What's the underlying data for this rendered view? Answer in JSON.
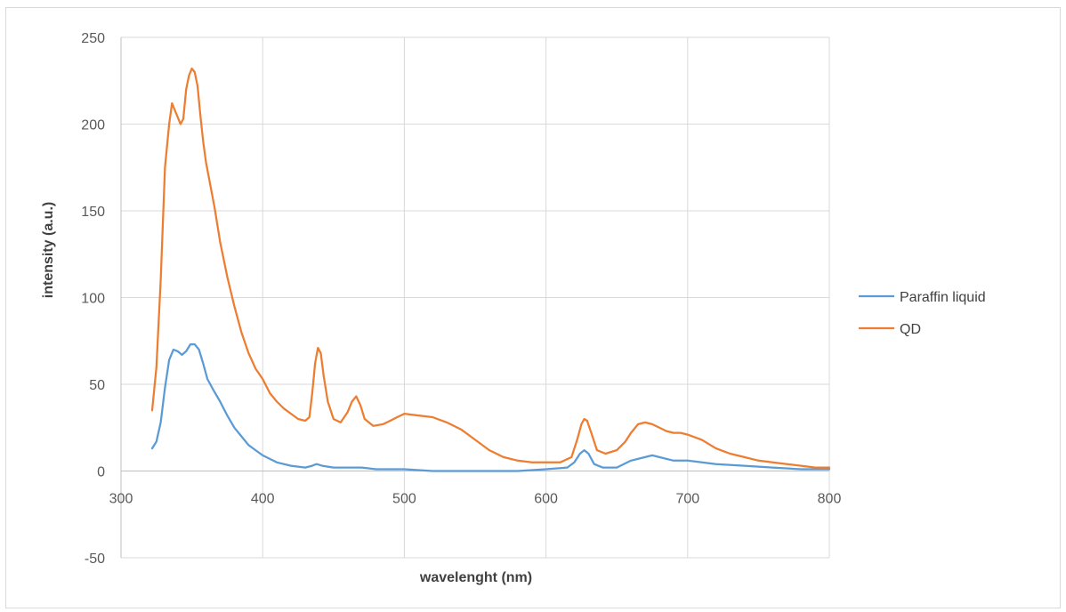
{
  "chart_data": {
    "type": "line",
    "title": "",
    "xlabel": "wavelenght (nm)",
    "ylabel": "intensity (a.u.)",
    "xlim": [
      300,
      800
    ],
    "ylim": [
      -50,
      250
    ],
    "x_ticks": [
      300,
      400,
      500,
      600,
      700,
      800
    ],
    "y_ticks": [
      -50,
      0,
      50,
      100,
      150,
      200,
      250
    ],
    "grid": true,
    "legend_position": "right",
    "series": [
      {
        "name": "Paraffin liquid",
        "color": "#5b9bd5",
        "points": [
          [
            322,
            13
          ],
          [
            325,
            17
          ],
          [
            328,
            28
          ],
          [
            331,
            48
          ],
          [
            334,
            64
          ],
          [
            337,
            70
          ],
          [
            340,
            69
          ],
          [
            343,
            67
          ],
          [
            346,
            69
          ],
          [
            349,
            73
          ],
          [
            352,
            73
          ],
          [
            355,
            70
          ],
          [
            358,
            62
          ],
          [
            361,
            53
          ],
          [
            365,
            47
          ],
          [
            370,
            40
          ],
          [
            375,
            32
          ],
          [
            380,
            25
          ],
          [
            385,
            20
          ],
          [
            390,
            15
          ],
          [
            395,
            12
          ],
          [
            400,
            9
          ],
          [
            410,
            5
          ],
          [
            420,
            3
          ],
          [
            430,
            2
          ],
          [
            435,
            3
          ],
          [
            438,
            4
          ],
          [
            442,
            3
          ],
          [
            450,
            2
          ],
          [
            460,
            2
          ],
          [
            470,
            2
          ],
          [
            480,
            1
          ],
          [
            500,
            1
          ],
          [
            520,
            0
          ],
          [
            540,
            0
          ],
          [
            560,
            0
          ],
          [
            580,
            0
          ],
          [
            600,
            1
          ],
          [
            615,
            2
          ],
          [
            620,
            5
          ],
          [
            624,
            10
          ],
          [
            627,
            12
          ],
          [
            630,
            10
          ],
          [
            634,
            4
          ],
          [
            640,
            2
          ],
          [
            650,
            2
          ],
          [
            660,
            6
          ],
          [
            670,
            8
          ],
          [
            675,
            9
          ],
          [
            680,
            8
          ],
          [
            690,
            6
          ],
          [
            700,
            6
          ],
          [
            710,
            5
          ],
          [
            720,
            4
          ],
          [
            740,
            3
          ],
          [
            760,
            2
          ],
          [
            780,
            1
          ],
          [
            800,
            1
          ]
        ]
      },
      {
        "name": "QD",
        "color": "#ed7d31",
        "points": [
          [
            322,
            35
          ],
          [
            325,
            60
          ],
          [
            328,
            110
          ],
          [
            331,
            175
          ],
          [
            334,
            200
          ],
          [
            336,
            212
          ],
          [
            338,
            208
          ],
          [
            340,
            204
          ],
          [
            342,
            200
          ],
          [
            344,
            203
          ],
          [
            346,
            220
          ],
          [
            348,
            228
          ],
          [
            350,
            232
          ],
          [
            352,
            230
          ],
          [
            354,
            222
          ],
          [
            356,
            205
          ],
          [
            358,
            190
          ],
          [
            360,
            178
          ],
          [
            363,
            165
          ],
          [
            366,
            152
          ],
          [
            370,
            132
          ],
          [
            375,
            112
          ],
          [
            380,
            95
          ],
          [
            385,
            80
          ],
          [
            390,
            68
          ],
          [
            395,
            59
          ],
          [
            400,
            53
          ],
          [
            405,
            45
          ],
          [
            410,
            40
          ],
          [
            415,
            36
          ],
          [
            420,
            33
          ],
          [
            425,
            30
          ],
          [
            430,
            29
          ],
          [
            433,
            31
          ],
          [
            435,
            45
          ],
          [
            437,
            62
          ],
          [
            439,
            71
          ],
          [
            441,
            68
          ],
          [
            443,
            55
          ],
          [
            446,
            40
          ],
          [
            450,
            30
          ],
          [
            455,
            28
          ],
          [
            460,
            34
          ],
          [
            463,
            40
          ],
          [
            466,
            43
          ],
          [
            469,
            38
          ],
          [
            472,
            30
          ],
          [
            478,
            26
          ],
          [
            485,
            27
          ],
          [
            490,
            29
          ],
          [
            495,
            31
          ],
          [
            500,
            33
          ],
          [
            510,
            32
          ],
          [
            520,
            31
          ],
          [
            530,
            28
          ],
          [
            540,
            24
          ],
          [
            550,
            18
          ],
          [
            560,
            12
          ],
          [
            570,
            8
          ],
          [
            580,
            6
          ],
          [
            590,
            5
          ],
          [
            600,
            5
          ],
          [
            610,
            5
          ],
          [
            618,
            8
          ],
          [
            622,
            18
          ],
          [
            625,
            27
          ],
          [
            627,
            30
          ],
          [
            629,
            29
          ],
          [
            632,
            22
          ],
          [
            636,
            12
          ],
          [
            642,
            10
          ],
          [
            650,
            12
          ],
          [
            656,
            17
          ],
          [
            660,
            22
          ],
          [
            665,
            27
          ],
          [
            670,
            28
          ],
          [
            675,
            27
          ],
          [
            680,
            25
          ],
          [
            685,
            23
          ],
          [
            690,
            22
          ],
          [
            695,
            22
          ],
          [
            700,
            21
          ],
          [
            710,
            18
          ],
          [
            720,
            13
          ],
          [
            730,
            10
          ],
          [
            740,
            8
          ],
          [
            750,
            6
          ],
          [
            760,
            5
          ],
          [
            770,
            4
          ],
          [
            780,
            3
          ],
          [
            790,
            2
          ],
          [
            800,
            2
          ]
        ]
      }
    ]
  }
}
